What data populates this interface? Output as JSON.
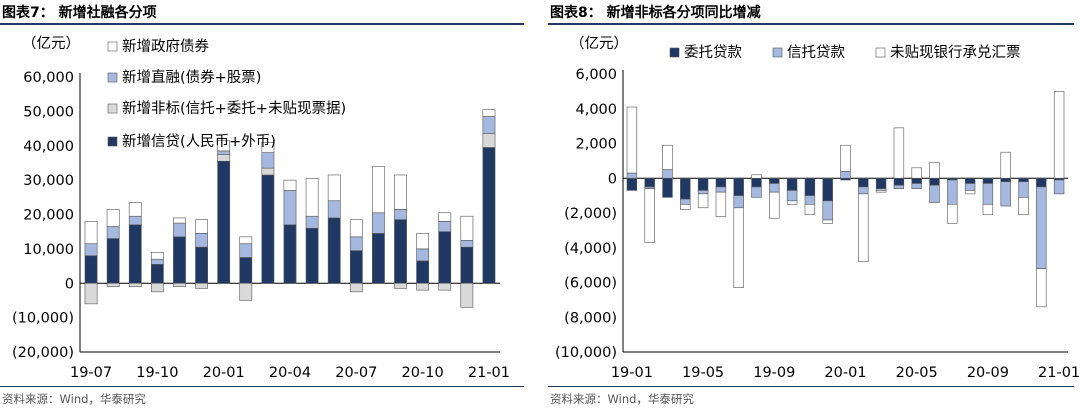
{
  "left": {
    "fig_title": "图表7：  新增社融各分项",
    "source": "资料来源：Wind，华泰研究",
    "chart_data": {
      "type": "bar",
      "stacked": true,
      "unit": "（亿元）",
      "categories": [
        "19-07",
        "19-08",
        "19-09",
        "19-10",
        "19-11",
        "19-12",
        "20-01",
        "20-02",
        "20-03",
        "20-04",
        "20-05",
        "20-06",
        "20-07",
        "20-08",
        "20-09",
        "20-10",
        "20-11",
        "20-12",
        "21-01"
      ],
      "x_tick_labels": [
        "19-07",
        "19-10",
        "20-01",
        "20-04",
        "20-07",
        "20-10",
        "21-01"
      ],
      "ylim": [
        -20000,
        60000
      ],
      "y_tick_labels": [
        "60,000",
        "50,000",
        "40,000",
        "30,000",
        "20,000",
        "10,000",
        "0",
        "(10,000)",
        "(20,000)"
      ],
      "legend_position": "top-left",
      "series": [
        {
          "name": "新增信贷(人民币+外币)",
          "color": "#1f3864",
          "values": [
            8000,
            13000,
            17000,
            5500,
            13500,
            10500,
            35500,
            7500,
            31500,
            17000,
            16000,
            19000,
            9500,
            14500,
            18500,
            6500,
            15000,
            10500,
            39500
          ]
        },
        {
          "name": "新增非标(信托+委托+未贴现票据)",
          "color": "#d9d9d9",
          "values": [
            -6000,
            -1000,
            -1000,
            -2500,
            -1000,
            -1500,
            2000,
            -5000,
            2000,
            0,
            0,
            0,
            -2500,
            0,
            -1500,
            -2000,
            -2000,
            -7000,
            4000
          ]
        },
        {
          "name": "新增直融(债券+股票)",
          "color": "#a4b8e0",
          "values": [
            3500,
            3500,
            2500,
            1500,
            4000,
            4000,
            1000,
            4000,
            4500,
            10000,
            3500,
            5000,
            4000,
            6000,
            3000,
            3500,
            3000,
            2000,
            5000
          ]
        },
        {
          "name": "新增政府债券",
          "color": "#ffffff",
          "values": [
            6500,
            5000,
            4000,
            2000,
            1500,
            4000,
            3000,
            2000,
            3000,
            3000,
            11000,
            7500,
            5000,
            13500,
            10000,
            4500,
            2500,
            7000,
            2000
          ]
        }
      ]
    }
  },
  "right": {
    "fig_title": "图表8：  新增非标各分项同比增减",
    "source": "资料来源：Wind，华泰研究",
    "chart_data": {
      "type": "bar",
      "stacked": true,
      "unit": "（亿元）",
      "categories": [
        "19-01",
        "19-02",
        "19-03",
        "19-04",
        "19-05",
        "19-06",
        "19-07",
        "19-08",
        "19-09",
        "19-10",
        "19-11",
        "19-12",
        "20-01",
        "20-02",
        "20-03",
        "20-04",
        "20-05",
        "20-06",
        "20-07",
        "20-08",
        "20-09",
        "20-10",
        "20-11",
        "20-12",
        "21-01"
      ],
      "x_tick_labels": [
        "19-01",
        "19-05",
        "19-09",
        "20-01",
        "20-05",
        "20-09",
        "21-01"
      ],
      "ylim": [
        -10000,
        6000
      ],
      "y_tick_labels": [
        "6,000",
        "4,000",
        "2,000",
        "0",
        "(2,000)",
        "(4,000)",
        "(6,000)",
        "(8,000)",
        "(10,000)"
      ],
      "legend_position": "top",
      "series": [
        {
          "name": "委托贷款",
          "color": "#1f3864",
          "values": [
            -700,
            -500,
            -1100,
            -1200,
            -700,
            -500,
            -1000,
            -500,
            -300,
            -700,
            -1000,
            -1300,
            -100,
            -500,
            -600,
            -400,
            -300,
            -400,
            -100,
            -300,
            -300,
            -200,
            -200,
            -500,
            -100
          ]
        },
        {
          "name": "信托贷款",
          "color": "#a4b8e0",
          "values": [
            300,
            -100,
            500,
            -300,
            -200,
            -300,
            -700,
            -600,
            -500,
            -600,
            -500,
            -1100,
            400,
            -400,
            -100,
            -200,
            -300,
            -1000,
            -1400,
            -400,
            -1200,
            -1400,
            -900,
            -4700,
            -800
          ]
        },
        {
          "name": "未贴现银行承兑汇票",
          "color": "#ffffff",
          "values": [
            3800,
            -3100,
            1400,
            -300,
            -800,
            -1400,
            -4600,
            200,
            -1500,
            -200,
            -600,
            -200,
            1500,
            -3900,
            -100,
            2900,
            600,
            900,
            -1100,
            -200,
            -600,
            1500,
            -1000,
            -2200,
            5000
          ]
        }
      ]
    }
  }
}
